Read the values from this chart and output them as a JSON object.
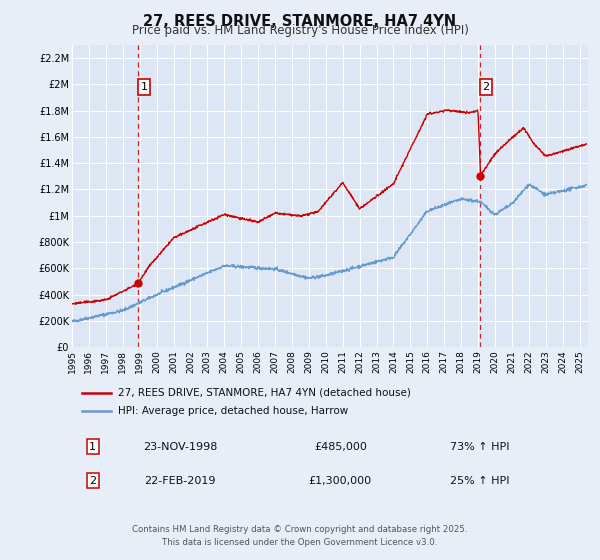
{
  "title": "27, REES DRIVE, STANMORE, HA7 4YN",
  "subtitle": "Price paid vs. HM Land Registry's House Price Index (HPI)",
  "bg_color": "#e8eef7",
  "plot_bg_color": "#dce6f5",
  "grid_color": "#ffffff",
  "red_color": "#cc0000",
  "blue_color": "#6699cc",
  "marker1_date": 1998.9,
  "marker1_value": 485000,
  "marker1_label": "1",
  "marker1_text": "23-NOV-1998",
  "marker1_price": "£485,000",
  "marker1_hpi": "73% ↑ HPI",
  "marker2_date": 2019.12,
  "marker2_value": 1300000,
  "marker2_label": "2",
  "marker2_text": "22-FEB-2019",
  "marker2_price": "£1,300,000",
  "marker2_hpi": "25% ↑ HPI",
  "ylim_min": 0,
  "ylim_max": 2300000,
  "xlim_min": 1995,
  "xlim_max": 2025.5,
  "ylabel_ticks": [
    0,
    200000,
    400000,
    600000,
    800000,
    1000000,
    1200000,
    1400000,
    1600000,
    1800000,
    2000000,
    2200000
  ],
  "ylabel_labels": [
    "£0",
    "£200K",
    "£400K",
    "£600K",
    "£800K",
    "£1M",
    "£1.2M",
    "£1.4M",
    "£1.6M",
    "£1.8M",
    "£2M",
    "£2.2M"
  ],
  "xtick_years": [
    1995,
    1996,
    1997,
    1998,
    1999,
    2000,
    2001,
    2002,
    2003,
    2004,
    2005,
    2006,
    2007,
    2008,
    2009,
    2010,
    2011,
    2012,
    2013,
    2014,
    2015,
    2016,
    2017,
    2018,
    2019,
    2020,
    2021,
    2022,
    2023,
    2024,
    2025
  ],
  "footer_line1": "Contains HM Land Registry data © Crown copyright and database right 2025.",
  "footer_line2": "This data is licensed under the Open Government Licence v3.0.",
  "legend_red_label": "27, REES DRIVE, STANMORE, HA7 4YN (detached house)",
  "legend_blue_label": "HPI: Average price, detached house, Harrow"
}
